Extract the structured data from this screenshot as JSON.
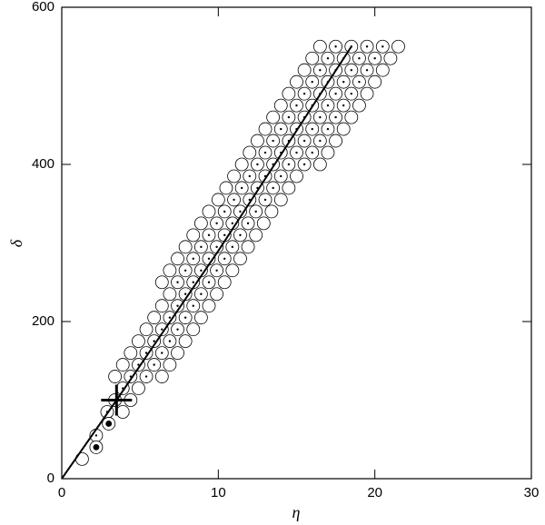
{
  "chart_data": {
    "type": "scatter",
    "x_label": "η",
    "y_label": "δ",
    "xlim": [
      0,
      30
    ],
    "ylim": [
      0,
      600
    ],
    "xticks": [
      0,
      10,
      20,
      30
    ],
    "yticks": [
      0,
      200,
      400,
      600
    ],
    "series": [
      {
        "marker": "open",
        "color": "#000000",
        "x": [
          1.3,
          3.9,
          4.4,
          4.9,
          3.4,
          6.4,
          3.9,
          6.9,
          4.4,
          7.4,
          4.9,
          7.9,
          5.4,
          8.4,
          5.9,
          8.9,
          6.4,
          9.4,
          6.9,
          9.9,
          6.4,
          10.4,
          6.9,
          10.9,
          7.4,
          11.4,
          7.9,
          11.9,
          8.4,
          12.4,
          8.9,
          12.9,
          9.4,
          13.4,
          10,
          14,
          10.5,
          14.5,
          11,
          15,
          11.5,
          16.5,
          12,
          17,
          12.5,
          17.5,
          13,
          18,
          13.5,
          18.5,
          14,
          19,
          14.5,
          19.5,
          15,
          20,
          15.5,
          20.5,
          16,
          21,
          16.5,
          21.5
        ],
        "values": [
          25,
          85,
          100,
          115,
          130,
          130,
          145,
          145,
          160,
          160,
          175,
          175,
          190,
          190,
          205,
          205,
          220,
          220,
          235,
          235,
          250,
          250,
          265,
          265,
          280,
          280,
          295,
          295,
          310,
          310,
          325,
          325,
          340,
          340,
          355,
          355,
          370,
          370,
          385,
          385,
          400,
          400,
          415,
          415,
          430,
          430,
          445,
          445,
          460,
          460,
          475,
          475,
          490,
          490,
          505,
          505,
          520,
          520,
          535,
          535,
          550,
          550
        ]
      },
      {
        "marker": "dot",
        "color": "#000000",
        "x": [
          2.2,
          2.9,
          3.4,
          3.9,
          4.4,
          5.4,
          4.9,
          5.9,
          5.4,
          6.4,
          5.9,
          6.9,
          6.4,
          7.4,
          6.9,
          7.9,
          7.4,
          8.4,
          7.9,
          8.9,
          7.4,
          8.4,
          9.4,
          7.9,
          8.9,
          9.9,
          8.4,
          9.4,
          10.4,
          8.9,
          9.9,
          10.9,
          9.4,
          10.4,
          11.4,
          9.9,
          10.9,
          11.9,
          10.4,
          11.4,
          12.4,
          11,
          12,
          13,
          11.5,
          12.5,
          13.5,
          12,
          13,
          14,
          12.5,
          13.5,
          14.5,
          15.5,
          13,
          14,
          15,
          16,
          13.5,
          14.5,
          15.5,
          16.5,
          14,
          15,
          16,
          17,
          14.5,
          15.5,
          16.5,
          17.5,
          15,
          16,
          17,
          18,
          15.5,
          16.5,
          17.5,
          18.5,
          16,
          17,
          18,
          19,
          16.5,
          17.5,
          18.5,
          19.5,
          17,
          18,
          19,
          20,
          17.5,
          18.5,
          19.5,
          20.5
        ],
        "values": [
          55,
          85,
          100,
          115,
          130,
          130,
          145,
          145,
          160,
          160,
          175,
          175,
          190,
          190,
          205,
          205,
          220,
          220,
          235,
          235,
          250,
          250,
          250,
          265,
          265,
          265,
          280,
          280,
          280,
          295,
          295,
          295,
          310,
          310,
          310,
          325,
          325,
          325,
          340,
          340,
          340,
          355,
          355,
          355,
          370,
          370,
          370,
          385,
          385,
          385,
          400,
          400,
          400,
          400,
          415,
          415,
          415,
          415,
          430,
          430,
          430,
          430,
          445,
          445,
          445,
          445,
          460,
          460,
          460,
          460,
          475,
          475,
          475,
          475,
          490,
          490,
          490,
          490,
          505,
          505,
          505,
          505,
          520,
          520,
          520,
          520,
          535,
          535,
          535,
          535,
          550,
          550,
          550,
          550
        ]
      },
      {
        "marker": "filled",
        "color": "#000000",
        "x": [
          2.2,
          3.0
        ],
        "values": [
          40,
          70
        ]
      }
    ],
    "line": {
      "color": "#000000",
      "x": [
        0,
        3.5,
        10,
        18.5
      ],
      "values": [
        0,
        100,
        290,
        550
      ]
    },
    "cross": {
      "color": "#000000",
      "x": [
        3.5
      ],
      "values": [
        100
      ]
    }
  }
}
